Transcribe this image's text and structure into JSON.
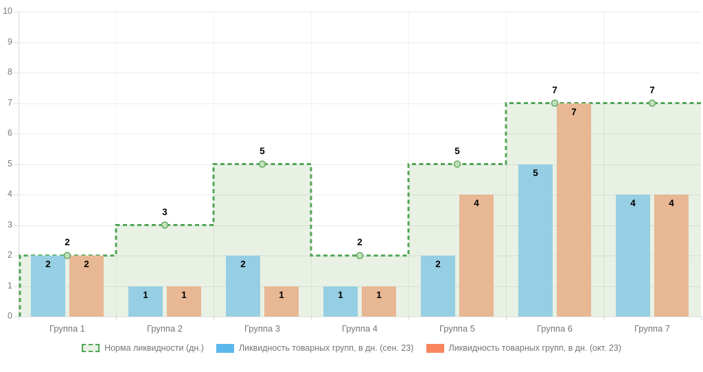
{
  "chart_data": {
    "type": "bar",
    "title": "",
    "categories": [
      "Группа 1",
      "Группа 2",
      "Группа 3",
      "Группа 4",
      "Группа 5",
      "Группа 6",
      "Группа 7"
    ],
    "series": [
      {
        "name": "Норма ликвидности (дн.)",
        "type": "step-area",
        "values": [
          2,
          3,
          5,
          2,
          5,
          7,
          7
        ],
        "line_color": "#4fa555",
        "fill_color": "#e8f1e4",
        "marker_fill": "#c4e0bd",
        "marker_stroke": "#66a861",
        "line_style": "dashed"
      },
      {
        "name": "Ликвидность товарных групп, в дн. (сен. 23)",
        "type": "bar",
        "values": [
          2,
          1,
          2,
          1,
          2,
          5,
          4
        ],
        "bar_color": "#96cfe3",
        "legend_color": "#5cb8ec"
      },
      {
        "name": "Ликвидность товарных групп, в дн. (окт. 23)",
        "type": "bar",
        "values": [
          2,
          1,
          1,
          1,
          4,
          7,
          4
        ],
        "bar_color": "#e8b794",
        "legend_color": "#f9855e"
      }
    ],
    "ylim": [
      0,
      10
    ],
    "yticks": [
      0,
      1,
      2,
      3,
      4,
      5,
      6,
      7,
      8,
      9,
      10
    ],
    "grid": true,
    "legend_position": "bottom",
    "value_labels": "inside-top",
    "norm_labels": "above-line"
  }
}
